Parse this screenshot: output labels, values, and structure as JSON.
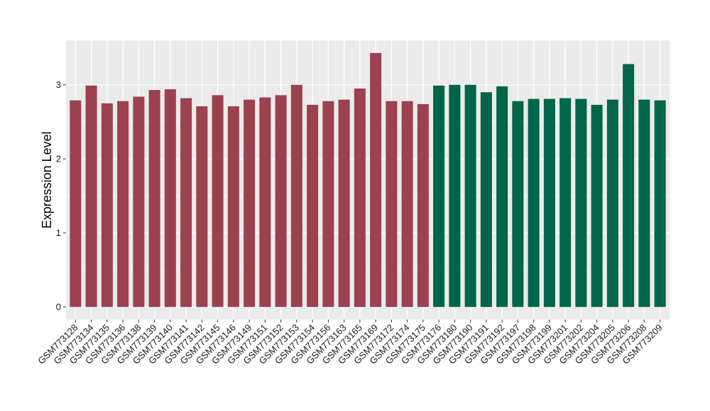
{
  "chart_data": {
    "type": "bar",
    "title": "",
    "xlabel": "",
    "ylabel": "Expression Level",
    "ylim": [
      -0.17,
      3.6
    ],
    "yticks": [
      0,
      1,
      2,
      3
    ],
    "grid": true,
    "legend": "none",
    "colors": {
      "panel_bg": "#ebebeb",
      "grid": "#ffffff",
      "group_a": "#9b4150",
      "group_b": "#00654a"
    },
    "categories": [
      "GSM773128",
      "GSM773134",
      "GSM773135",
      "GSM773136",
      "GSM773138",
      "GSM773139",
      "GSM773140",
      "GSM773141",
      "GSM773142",
      "GSM773145",
      "GSM773146",
      "GSM773149",
      "GSM773151",
      "GSM773152",
      "GSM773153",
      "GSM773154",
      "GSM773156",
      "GSM773163",
      "GSM773165",
      "GSM773169",
      "GSM773172",
      "GSM773174",
      "GSM773175",
      "GSM773176",
      "GSM773180",
      "GSM773190",
      "GSM773191",
      "GSM773192",
      "GSM773197",
      "GSM773198",
      "GSM773199",
      "GSM773201",
      "GSM773202",
      "GSM773204",
      "GSM773205",
      "GSM773206",
      "GSM773208",
      "GSM773209"
    ],
    "values": [
      2.79,
      2.99,
      2.75,
      2.78,
      2.84,
      2.93,
      2.94,
      2.82,
      2.71,
      2.86,
      2.71,
      2.8,
      2.83,
      2.86,
      3.0,
      2.73,
      2.78,
      2.8,
      2.95,
      3.43,
      2.78,
      2.78,
      2.74,
      2.99,
      3.0,
      3.0,
      2.9,
      2.98,
      2.78,
      2.81,
      2.81,
      2.82,
      2.81,
      2.73,
      2.8,
      3.28,
      2.8,
      2.79
    ],
    "group": [
      "a",
      "a",
      "a",
      "a",
      "a",
      "a",
      "a",
      "a",
      "a",
      "a",
      "a",
      "a",
      "a",
      "a",
      "a",
      "a",
      "a",
      "a",
      "a",
      "a",
      "a",
      "a",
      "a",
      "b",
      "b",
      "b",
      "b",
      "b",
      "b",
      "b",
      "b",
      "b",
      "b",
      "b",
      "b",
      "b",
      "b",
      "b"
    ]
  }
}
